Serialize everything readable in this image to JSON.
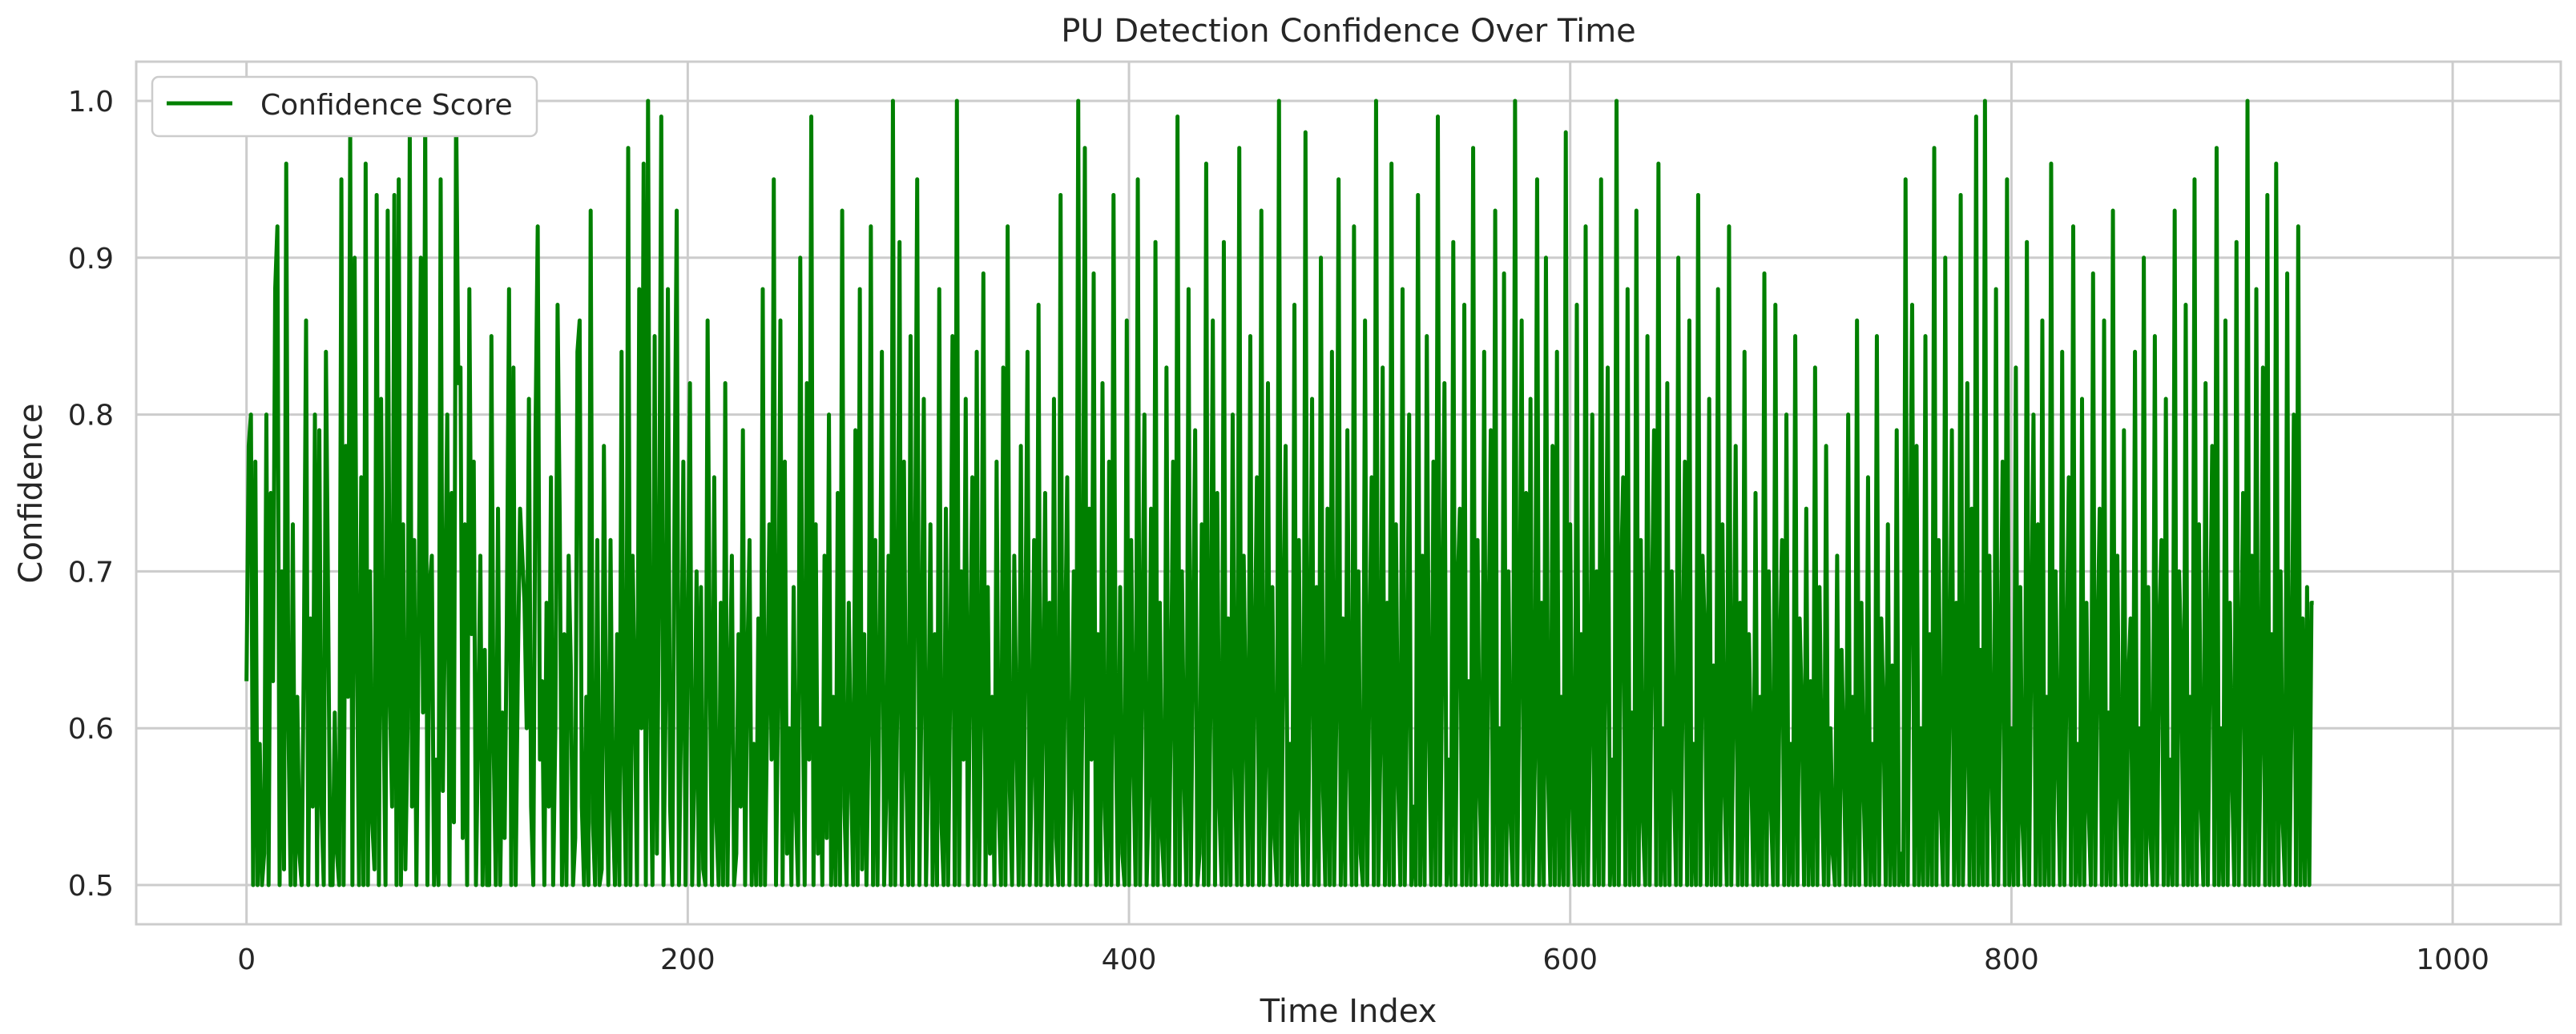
{
  "chart_data": {
    "type": "line",
    "title": "PU Detection Confidence Over Time",
    "xlabel": "Time Index",
    "ylabel": "Confidence",
    "xlim": [
      -50,
      1049
    ],
    "ylim": [
      0.475,
      1.025
    ],
    "xticks": [
      0,
      200,
      400,
      600,
      800,
      1000
    ],
    "yticks": [
      0.5,
      0.6,
      0.7,
      0.8,
      0.9,
      1.0
    ],
    "xtick_labels": [
      "0",
      "200",
      "400",
      "600",
      "800",
      "1000"
    ],
    "ytick_labels": [
      "0.5",
      "0.6",
      "0.7",
      "0.8",
      "0.9",
      "1.0"
    ],
    "grid": true,
    "legend_position": "top-left",
    "series": [
      {
        "name": "Confidence Score",
        "color": "#008000",
        "x_start": 0,
        "x_step": 1,
        "values": [
          0.63,
          0.78,
          0.8,
          0.5,
          0.77,
          0.5,
          0.59,
          0.5,
          0.52,
          0.8,
          0.5,
          0.75,
          0.63,
          0.88,
          0.92,
          0.5,
          0.7,
          0.51,
          0.96,
          0.6,
          0.5,
          0.73,
          0.5,
          0.62,
          0.52,
          0.5,
          0.65,
          0.86,
          0.5,
          0.67,
          0.55,
          0.8,
          0.5,
          0.79,
          0.55,
          0.5,
          0.84,
          0.68,
          0.5,
          0.5,
          0.61,
          0.52,
          0.5,
          0.95,
          0.5,
          0.78,
          0.62,
          0.98,
          0.5,
          0.9,
          0.66,
          0.5,
          0.76,
          0.5,
          0.96,
          0.5,
          0.7,
          0.54,
          0.51,
          0.94,
          0.5,
          0.81,
          0.63,
          0.5,
          0.93,
          0.62,
          0.55,
          0.94,
          0.5,
          0.95,
          0.5,
          0.73,
          0.51,
          0.6,
          0.98,
          0.55,
          0.72,
          0.5,
          0.66,
          0.9,
          0.61,
          0.99,
          0.5,
          0.69,
          0.71,
          0.5,
          0.58,
          0.5,
          0.95,
          0.56,
          0.68,
          0.8,
          0.5,
          0.75,
          0.54,
          1.0,
          0.82,
          0.83,
          0.53,
          0.73,
          0.5,
          0.88,
          0.66,
          0.77,
          0.5,
          0.6,
          0.71,
          0.5,
          0.65,
          0.5,
          0.5,
          0.85,
          0.59,
          0.5,
          0.74,
          0.5,
          0.61,
          0.53,
          0.67,
          0.88,
          0.5,
          0.83,
          0.5,
          0.64,
          0.74,
          0.71,
          0.68,
          0.6,
          0.81,
          0.55,
          0.5,
          0.79,
          0.92,
          0.58,
          0.63,
          0.5,
          0.68,
          0.55,
          0.76,
          0.5,
          0.6,
          0.87,
          0.73,
          0.5,
          0.66,
          0.5,
          0.71,
          0.64,
          0.5,
          0.53,
          0.84,
          0.86,
          0.55,
          0.5,
          0.62,
          0.5,
          0.93,
          0.54,
          0.5,
          0.72,
          0.5,
          0.51,
          0.78,
          0.6,
          0.5,
          0.72,
          0.55,
          0.5,
          0.66,
          0.5,
          0.84,
          0.58,
          0.5,
          0.97,
          0.5,
          0.71,
          0.62,
          0.5,
          0.88,
          0.6,
          0.96,
          0.5,
          1.0,
          0.61,
          0.5,
          0.85,
          0.52,
          0.7,
          0.99,
          0.5,
          0.62,
          0.88,
          0.55,
          0.5,
          0.74,
          0.93,
          0.5,
          0.61,
          0.77,
          0.5,
          0.66,
          0.82,
          0.5,
          0.57,
          0.7,
          0.5,
          0.69,
          0.51,
          0.5,
          0.86,
          0.64,
          0.5,
          0.76,
          0.54,
          0.5,
          0.68,
          0.5,
          0.82,
          0.5,
          0.62,
          0.71,
          0.5,
          0.52,
          0.66,
          0.55,
          0.79,
          0.5,
          0.64,
          0.72,
          0.5,
          0.59,
          0.5,
          0.67,
          0.5,
          0.88,
          0.5,
          0.61,
          0.73,
          0.58,
          0.95,
          0.5,
          0.63,
          0.86,
          0.5,
          0.77,
          0.52,
          0.6,
          0.5,
          0.69,
          0.55,
          0.5,
          0.9,
          0.64,
          0.5,
          0.82,
          0.58,
          0.99,
          0.5,
          0.73,
          0.52,
          0.6,
          0.5,
          0.71,
          0.53,
          0.8,
          0.5,
          0.62,
          0.5,
          0.75,
          0.5,
          0.93,
          0.55,
          0.5,
          0.68,
          0.57,
          0.5,
          0.79,
          0.5,
          0.88,
          0.51,
          0.66,
          0.5,
          0.6,
          0.92,
          0.5,
          0.72,
          0.5,
          0.64,
          0.84,
          0.5,
          0.56,
          0.71,
          0.5,
          1.0,
          0.5,
          0.62,
          0.91,
          0.5,
          0.77,
          0.58,
          0.5,
          0.85,
          0.5,
          0.69,
          0.95,
          0.5,
          0.63,
          0.81,
          0.5,
          0.58,
          0.73,
          0.5,
          0.66,
          0.5,
          0.88,
          0.54,
          0.5,
          0.74,
          0.5,
          0.63,
          0.85,
          0.5,
          1.0,
          0.5,
          0.7,
          0.58,
          0.81,
          0.5,
          0.64,
          0.76,
          0.5,
          0.84,
          0.5,
          0.61,
          0.89,
          0.5,
          0.69,
          0.52,
          0.62,
          0.5,
          0.77,
          0.55,
          0.5,
          0.83,
          0.5,
          0.92,
          0.56,
          0.5,
          0.71,
          0.6,
          0.5,
          0.78,
          0.5,
          0.65,
          0.84,
          0.5,
          0.58,
          0.72,
          0.5,
          0.87,
          0.5,
          0.61,
          0.75,
          0.5,
          0.68,
          0.5,
          0.81,
          0.53,
          0.5,
          0.94,
          0.5,
          0.64,
          0.76,
          0.5,
          0.57,
          0.7,
          0.5,
          1.0,
          0.5,
          0.63,
          0.97,
          0.5,
          0.74,
          0.58,
          0.89,
          0.5,
          0.66,
          0.5,
          0.82,
          0.55,
          0.5,
          0.77,
          0.5,
          0.94,
          0.6,
          0.5,
          0.69,
          0.52,
          0.5,
          0.86,
          0.5,
          0.72,
          0.58,
          0.5,
          0.95,
          0.5,
          0.64,
          0.8,
          0.5,
          0.56,
          0.74,
          0.5,
          0.91,
          0.5,
          0.68,
          0.53,
          0.5,
          0.83,
          0.5,
          0.61,
          0.77,
          0.5,
          0.99,
          0.5,
          0.7,
          0.57,
          0.5,
          0.88,
          0.5,
          0.65,
          0.79,
          0.5,
          0.52,
          0.73,
          0.5,
          0.96,
          0.5,
          0.62,
          0.86,
          0.5,
          0.75,
          0.55,
          0.5,
          0.91,
          0.5,
          0.67,
          0.5,
          0.8,
          0.58,
          0.5,
          0.97,
          0.5,
          0.71,
          0.6,
          0.5,
          0.85,
          0.5,
          0.64,
          0.76,
          0.5,
          0.93,
          0.5,
          0.58,
          0.82,
          0.5,
          0.69,
          0.53,
          0.5,
          1.0,
          0.5,
          0.66,
          0.78,
          0.5,
          0.59,
          0.5,
          0.87,
          0.5,
          0.72,
          0.55,
          0.5,
          0.98,
          0.5,
          0.63,
          0.81,
          0.5,
          0.69,
          0.5,
          0.9,
          0.56,
          0.5,
          0.74,
          0.5,
          0.84,
          0.5,
          0.61,
          0.95,
          0.5,
          0.67,
          0.5,
          0.79,
          0.58,
          0.5,
          0.92,
          0.5,
          0.7,
          0.52,
          0.5,
          0.86,
          0.5,
          0.64,
          0.76,
          0.5,
          1.0,
          0.5,
          0.59,
          0.83,
          0.5,
          0.68,
          0.5,
          0.96,
          0.5,
          0.73,
          0.57,
          0.5,
          0.88,
          0.5,
          0.62,
          0.8,
          0.5,
          0.55,
          0.5,
          0.94,
          0.5,
          0.71,
          0.5,
          0.85,
          0.6,
          0.5,
          0.77,
          0.5,
          0.99,
          0.5,
          0.65,
          0.82,
          0.5,
          0.58,
          0.5,
          0.91,
          0.5,
          0.69,
          0.74,
          0.5,
          0.87,
          0.5,
          0.63,
          0.5,
          0.97,
          0.5,
          0.72,
          0.56,
          0.5,
          0.84,
          0.5,
          0.66,
          0.79,
          0.5,
          0.93,
          0.5,
          0.6,
          0.5,
          0.89,
          0.5,
          0.7,
          0.54,
          0.5,
          1.0,
          0.5,
          0.64,
          0.86,
          0.5,
          0.75,
          0.5,
          0.81,
          0.5,
          0.58,
          0.95,
          0.5,
          0.68,
          0.5,
          0.9,
          0.57,
          0.5,
          0.78,
          0.5,
          0.84,
          0.5,
          0.62,
          0.5,
          0.98,
          0.5,
          0.73,
          0.55,
          0.5,
          0.87,
          0.5,
          0.66,
          0.5,
          0.92,
          0.5,
          0.6,
          0.8,
          0.5,
          0.7,
          0.5,
          0.95,
          0.5,
          0.64,
          0.83,
          0.5,
          0.58,
          0.5,
          1.0,
          0.5,
          0.69,
          0.76,
          0.5,
          0.88,
          0.5,
          0.61,
          0.5,
          0.93,
          0.5,
          0.72,
          0.54,
          0.5,
          0.85,
          0.5,
          0.67,
          0.79,
          0.5,
          0.96,
          0.5,
          0.6,
          0.5,
          0.82,
          0.5,
          0.7,
          0.57,
          0.5,
          0.9,
          0.5,
          0.63,
          0.77,
          0.5,
          0.86,
          0.5,
          0.59,
          0.5,
          0.94,
          0.5,
          0.71,
          0.66,
          0.5,
          0.81,
          0.5,
          0.64,
          0.5,
          0.88,
          0.5,
          0.73,
          0.56,
          0.5,
          0.92,
          0.5,
          0.61,
          0.78,
          0.5,
          0.68,
          0.5,
          0.84,
          0.5,
          0.66,
          0.58,
          0.5,
          0.75,
          0.5,
          0.62,
          0.5,
          0.89,
          0.5,
          0.7,
          0.55,
          0.5,
          0.87,
          0.5,
          0.64,
          0.72,
          0.5,
          0.8,
          0.5,
          0.59,
          0.5,
          0.85,
          0.5,
          0.67,
          0.61,
          0.5,
          0.74,
          0.5,
          0.63,
          0.5,
          0.83,
          0.5,
          0.69,
          0.57,
          0.5,
          0.78,
          0.5,
          0.6,
          0.52,
          0.5,
          0.71,
          0.5,
          0.65,
          0.58,
          0.5,
          0.8,
          0.5,
          0.62,
          0.5,
          0.86,
          0.5,
          0.68,
          0.56,
          0.5,
          0.76,
          0.5,
          0.59,
          0.5,
          0.85,
          0.5,
          0.67,
          0.61,
          0.5,
          0.73,
          0.5,
          0.64,
          0.5,
          0.79,
          0.5,
          0.52,
          0.5,
          0.95,
          0.5,
          0.7,
          0.87,
          0.5,
          0.78,
          0.5,
          0.6,
          0.5,
          0.85,
          0.5,
          0.66,
          0.5,
          0.97,
          0.5,
          0.72,
          0.55,
          0.5,
          0.9,
          0.5,
          0.62,
          0.79,
          0.5,
          0.68,
          0.5,
          0.94,
          0.5,
          0.58,
          0.82,
          0.5,
          0.74,
          0.5,
          0.99,
          0.5,
          0.65,
          0.5,
          1.0,
          0.5,
          0.71,
          0.57,
          0.5,
          0.88,
          0.5,
          0.63,
          0.77,
          0.5,
          0.95,
          0.5,
          0.6,
          0.5,
          0.83,
          0.5,
          0.69,
          0.54,
          0.5,
          0.91,
          0.5,
          0.66,
          0.8,
          0.5,
          0.73,
          0.5,
          0.86,
          0.5,
          0.62,
          0.5,
          0.96,
          0.5,
          0.7,
          0.58,
          0.5,
          0.84,
          0.5,
          0.64,
          0.76,
          0.5,
          0.92,
          0.5,
          0.59,
          0.5,
          0.81,
          0.5,
          0.68,
          0.55,
          0.5,
          0.89,
          0.5,
          0.65,
          0.74,
          0.5,
          0.86,
          0.5,
          0.61,
          0.5,
          0.93,
          0.5,
          0.71,
          0.56,
          0.5,
          0.79,
          0.5,
          0.63,
          0.67,
          0.5,
          0.84,
          0.5,
          0.6,
          0.5,
          0.9,
          0.5,
          0.69,
          0.53,
          0.5,
          0.85,
          0.5,
          0.66,
          0.72,
          0.5,
          0.81,
          0.5,
          0.58,
          0.5,
          0.93,
          0.5,
          0.7,
          0.64,
          0.5,
          0.87,
          0.5,
          0.62,
          0.5,
          0.95,
          0.5,
          0.73,
          0.55,
          0.5,
          0.82,
          0.5,
          0.65,
          0.78,
          0.5,
          0.97,
          0.5,
          0.6,
          0.5,
          0.86,
          0.5,
          0.68,
          0.57,
          0.5,
          0.91,
          0.5,
          0.63,
          0.75,
          0.5,
          1.0,
          0.5,
          0.71,
          0.5,
          0.88,
          0.5,
          0.59,
          0.83,
          0.5,
          0.94,
          0.5,
          0.66,
          0.5,
          0.96,
          0.5,
          0.7,
          0.54,
          0.5,
          0.89,
          0.5,
          0.62,
          0.8,
          0.5,
          0.92,
          0.5,
          0.67,
          0.5,
          0.69,
          0.5,
          0.68,
          0.68
        ]
      }
    ]
  }
}
